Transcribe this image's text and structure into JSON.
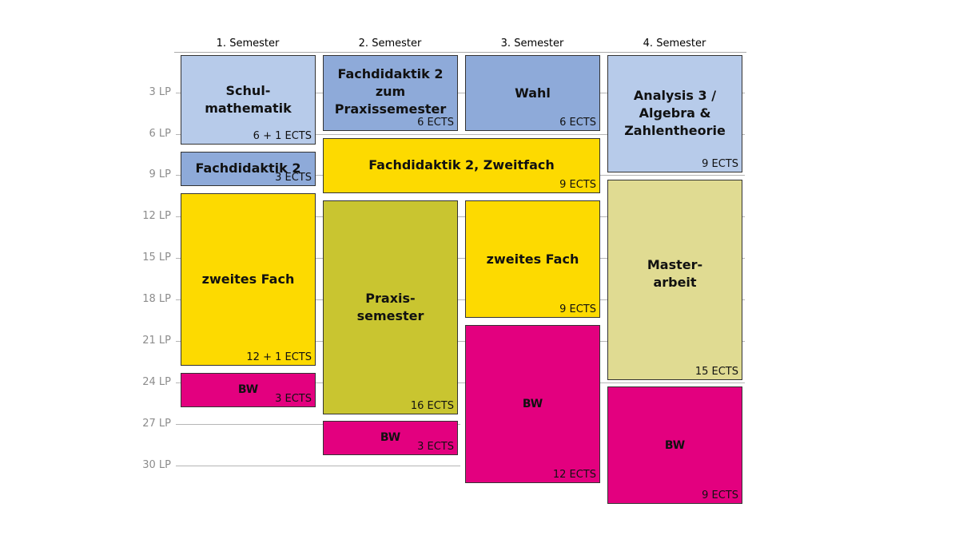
{
  "semesters": [
    "1. Semester",
    "2. Semester",
    "3. Semester",
    "4. Semester"
  ],
  "lp_labels": [
    "3 LP",
    "6 LP",
    "9 LP",
    "12 LP",
    "15 LP",
    "18 LP",
    "21 LP",
    "24 LP",
    "27 LP",
    "30 LP"
  ],
  "colors": {
    "light_blue": "#b7cbea",
    "mid_blue": "#8eaad9",
    "yellow": "#fdda00",
    "olive": "#c9c530",
    "khaki": "#e0db92",
    "magenta": "#e3007f"
  },
  "modules": [
    {
      "semester": 1,
      "title": "Schul-\nmathematik",
      "ects": "6 + 1 ECTS",
      "color": "light_blue"
    },
    {
      "semester": 1,
      "title": "Fachdidaktik 2",
      "ects": "3 ECTS",
      "color": "mid_blue"
    },
    {
      "semester": 1,
      "title": "zweites Fach",
      "ects": "12 + 1 ECTS",
      "color": "yellow"
    },
    {
      "semester": 1,
      "title": "BW",
      "ects": "3 ECTS",
      "color": "magenta"
    },
    {
      "semester": 2,
      "title": "Fachdidaktik 2\nzum\nPraxissemester",
      "ects": "6 ECTS",
      "color": "mid_blue"
    },
    {
      "semester": "2-3",
      "title": "Fachdidaktik 2, Zweitfach",
      "ects": "9 ECTS",
      "color": "yellow"
    },
    {
      "semester": 2,
      "title": "Praxis-\nsemester",
      "ects": "16 ECTS",
      "color": "olive"
    },
    {
      "semester": 2,
      "title": "BW",
      "ects": "3 ECTS",
      "color": "magenta"
    },
    {
      "semester": 3,
      "title": "Wahl",
      "ects": "6 ECTS",
      "color": "mid_blue"
    },
    {
      "semester": 3,
      "title": "zweites Fach",
      "ects": "9 ECTS",
      "color": "yellow"
    },
    {
      "semester": 3,
      "title": "BW",
      "ects": "12 ECTS",
      "color": "magenta"
    },
    {
      "semester": 4,
      "title": "Analysis 3 /\nAlgebra &\nZahlentheorie",
      "ects": "9 ECTS",
      "color": "light_blue"
    },
    {
      "semester": 4,
      "title": "Master-\narbeit",
      "ects": "15 ECTS",
      "color": "khaki"
    },
    {
      "semester": 4,
      "title": "BW",
      "ects": "9 ECTS",
      "color": "magenta"
    }
  ]
}
